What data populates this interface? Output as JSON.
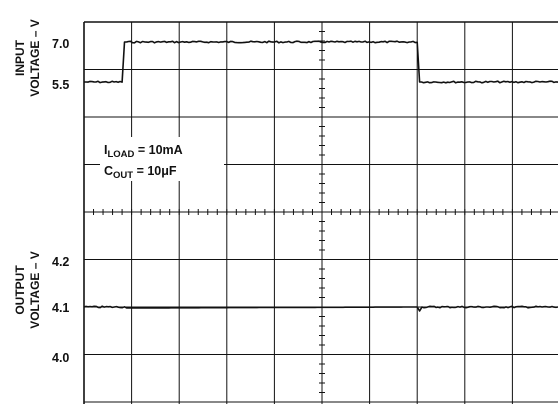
{
  "chart_data": [
    {
      "type": "line",
      "panel": "top",
      "ylabel_line1": "INPUT",
      "ylabel_line2": "VOLTAGE – V",
      "yticks": [
        {
          "value": 7.0,
          "label": "7.0"
        },
        {
          "value": 5.5,
          "label": "5.5"
        }
      ],
      "grid": true,
      "series": [
        {
          "x": [
            0,
            0.8,
            0.85,
            7.0,
            7.05,
            10
          ],
          "y": [
            5.5,
            5.5,
            7.0,
            7.0,
            5.5,
            5.5
          ]
        }
      ],
      "annotations": [
        {
          "main": "I",
          "sub": "LOAD",
          "rest": " = 10mA"
        },
        {
          "main": "C",
          "sub": "OUT",
          "rest": " = 10μF"
        }
      ]
    },
    {
      "type": "line",
      "panel": "bottom",
      "ylabel_line1": "OUTPUT",
      "ylabel_line2": "VOLTAGE – V",
      "yticks": [
        {
          "value": 4.2,
          "label": "4.2"
        },
        {
          "value": 4.1,
          "label": "4.1"
        },
        {
          "value": 4.0,
          "label": "4.0"
        }
      ],
      "grid": true,
      "series": [
        {
          "x": [
            0,
            0.85,
            0.9,
            7.0,
            7.05,
            7.1,
            10
          ],
          "y": [
            4.1,
            4.1,
            4.098,
            4.1,
            4.092,
            4.1,
            4.1
          ]
        }
      ]
    }
  ]
}
